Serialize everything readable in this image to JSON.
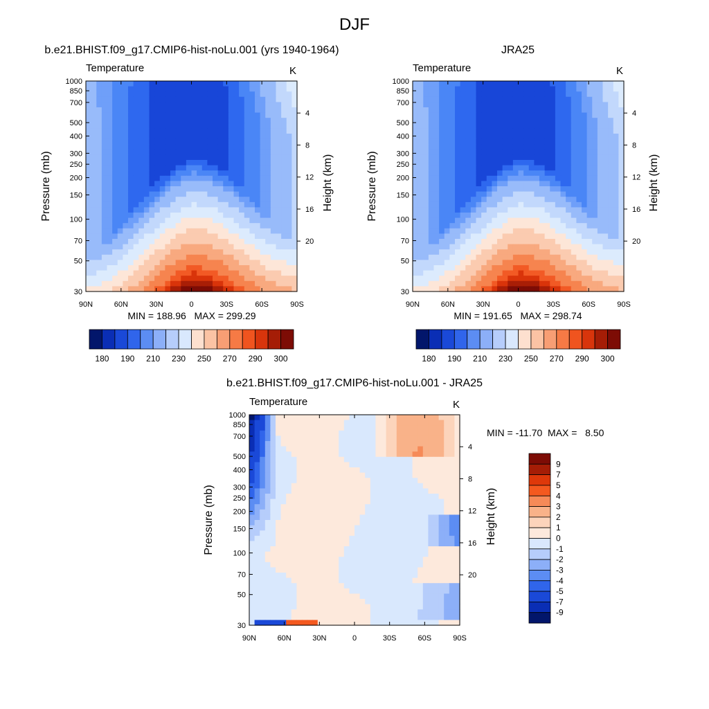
{
  "figure": {
    "title": "DJF"
  },
  "colors": {
    "abs_levels": [
      "#000090",
      "#0a2bb0",
      "#1846d8",
      "#2e68ef",
      "#4a86f6",
      "#6f9ff9",
      "#98bbfa",
      "#c2d8fc",
      "#dcebfd",
      "#fde6d8",
      "#fbcbb0",
      "#f8a97f",
      "#f6844f",
      "#f25a25",
      "#d9340a",
      "#a91e06",
      "#7d0c05"
    ],
    "abs_bar": [
      "#02166b",
      "#0a2eb5",
      "#1a49d8",
      "#3065eb",
      "#5c8df3",
      "#8caff8",
      "#b6cdfb",
      "#d9e8fd",
      "#fde0cf",
      "#fbc3a4",
      "#f89e74",
      "#f67a45",
      "#f0541f",
      "#d8350c",
      "#a51d06",
      "#7d0c05"
    ],
    "diff_bar": [
      "#7d0c05",
      "#a51d06",
      "#de380a",
      "#f4591f",
      "#f68a58",
      "#f9b289",
      "#fcd4bb",
      "#fde9dc",
      "#d9e8fd",
      "#b6cdfb",
      "#8caff8",
      "#5c8df3",
      "#3065eb",
      "#1a49d8",
      "#0a2eb5",
      "#02166b"
    ]
  },
  "chart_data": [
    {
      "type": "heatmap",
      "panel": "model",
      "title": "b.e21.BHIST.f09_g17.CMIP6-hist-noLu.001 (yrs 1940-1964)",
      "left_label": "Temperature",
      "right_label": "K",
      "xlabel": "",
      "ylabel": "Pressure (mb)",
      "y2label": "Height (km)",
      "x_ticks": [
        "90N",
        "60N",
        "30N",
        "0",
        "30S",
        "60S",
        "90S"
      ],
      "y_ticks": [
        "30",
        "50",
        "70",
        "100",
        "150",
        "200",
        "250",
        "300",
        "400",
        "500",
        "700",
        "850",
        "1000"
      ],
      "y2_ticks": [
        "20",
        "16",
        "12",
        "8",
        "4"
      ],
      "y_log_scale": true,
      "ylim": [
        1000,
        30
      ],
      "stats": "MIN = 188.96   MAX = 299.29",
      "min": 188.96,
      "max": 299.29,
      "units": "K",
      "colorbar_labels": [
        "180",
        "190",
        "210",
        "230",
        "250",
        "270",
        "290",
        "300"
      ]
    },
    {
      "type": "heatmap",
      "panel": "reanalysis",
      "title": "JRA25",
      "left_label": "Temperature",
      "right_label": "K",
      "xlabel": "",
      "ylabel": "Pressure (mb)",
      "y2label": "Height (km)",
      "x_ticks": [
        "90N",
        "60N",
        "30N",
        "0",
        "30S",
        "60S",
        "90S"
      ],
      "y_ticks": [
        "30",
        "50",
        "70",
        "100",
        "150",
        "200",
        "250",
        "300",
        "400",
        "500",
        "700",
        "850",
        "1000"
      ],
      "y2_ticks": [
        "20",
        "16",
        "12",
        "8",
        "4"
      ],
      "y_log_scale": true,
      "ylim": [
        1000,
        30
      ],
      "stats": "MIN = 191.65   MAX = 298.74",
      "min": 191.65,
      "max": 298.74,
      "units": "K",
      "colorbar_labels": [
        "180",
        "190",
        "210",
        "230",
        "250",
        "270",
        "290",
        "300"
      ]
    },
    {
      "type": "heatmap",
      "panel": "difference",
      "title": "b.e21.BHIST.f09_g17.CMIP6-hist-noLu.001 - JRA25",
      "left_label": "Temperature",
      "right_label": "K",
      "xlabel": "",
      "ylabel": "Pressure (mb)",
      "y2label": "Height (km)",
      "x_ticks": [
        "90N",
        "60N",
        "30N",
        "0",
        "30S",
        "60S",
        "90S"
      ],
      "y_ticks": [
        "30",
        "50",
        "70",
        "100",
        "150",
        "200",
        "250",
        "300",
        "400",
        "500",
        "700",
        "850",
        "1000"
      ],
      "y2_ticks": [
        "20",
        "16",
        "12",
        "8",
        "4"
      ],
      "y_log_scale": true,
      "ylim": [
        1000,
        30
      ],
      "stats": "MIN = -11.70  MAX =   8.50",
      "min": -11.7,
      "max": 8.5,
      "units": "K",
      "colorbar_labels": [
        "9",
        "7",
        "5",
        "4",
        "3",
        "2",
        "1",
        "0",
        "-1",
        "-2",
        "-3",
        "-4",
        "-5",
        "-7",
        "-9"
      ]
    }
  ]
}
